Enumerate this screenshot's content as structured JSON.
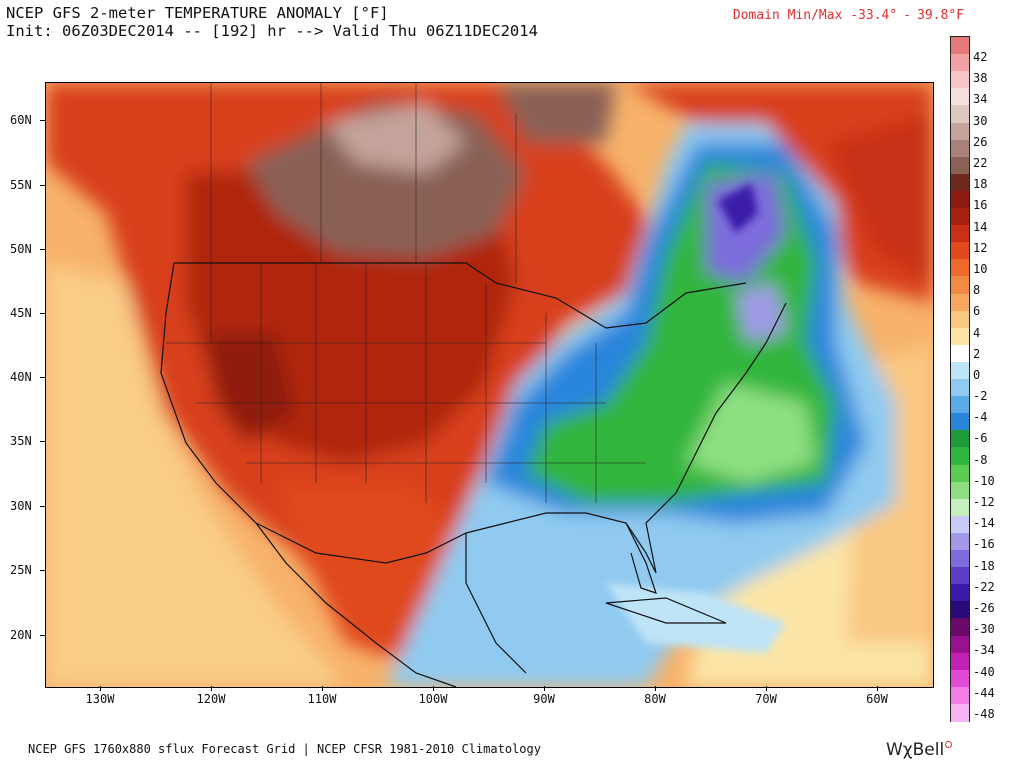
{
  "header": {
    "title_line1": "NCEP GFS 2-meter TEMPERATURE ANOMALY [°F]",
    "title_line2": "Init: 06Z03DEC2014 -- [192] hr --> Valid Thu 06Z11DEC2014"
  },
  "domain_minmax": {
    "label": "Domain Min/Max",
    "min": "-33.4°",
    "separator": "-",
    "max": "39.8°F",
    "color": "#e03030"
  },
  "axes": {
    "lat_labels": [
      "60N",
      "55N",
      "50N",
      "45N",
      "40N",
      "35N",
      "30N",
      "25N",
      "20N"
    ],
    "lon_labels": [
      "130W",
      "120W",
      "110W",
      "100W",
      "90W",
      "80W",
      "70W",
      "60W"
    ]
  },
  "colorbar": {
    "labels": [
      "42",
      "38",
      "34",
      "30",
      "26",
      "22",
      "18",
      "16",
      "14",
      "12",
      "10",
      "8",
      "6",
      "4",
      "2",
      "0",
      "-2",
      "-4",
      "-6",
      "-8",
      "-10",
      "-12",
      "-14",
      "-16",
      "-18",
      "-22",
      "-26",
      "-30",
      "-34",
      "-40",
      "-44",
      "-48"
    ],
    "colors": [
      "#e57a7a",
      "#f2a2a2",
      "#f8c8c8",
      "#f5dede",
      "#ddc8c0",
      "#c4a39a",
      "#a88276",
      "#8a6155",
      "#6f2a1e",
      "#8c1a10",
      "#a82010",
      "#c83018",
      "#e04a1c",
      "#ee6a2a",
      "#f38a44",
      "#f6a860",
      "#f9c882",
      "#fbe4a6",
      "#ffffff",
      "#bfe4f6",
      "#90caf0",
      "#5aaae8",
      "#2a86dc",
      "#1e9a3a",
      "#30b53e",
      "#5acc52",
      "#8edf82",
      "#c6efc0",
      "#c8ccf4",
      "#a29ae8",
      "#7d6cdc",
      "#5a3cc8",
      "#3a1aa8",
      "#2a0a78",
      "#6a0a6a",
      "#9a108e",
      "#c222b4",
      "#e04ad4",
      "#f27ee8",
      "#f8b4f2"
    ]
  },
  "footer": {
    "text": "NCEP GFS 1760x880 sflux Forecast Grid | NCEP CFSR 1981-2010 Climatology",
    "brand": "WχBell"
  },
  "map_colors": {
    "ocean_warm": "#f7b26a",
    "ocean_mild": "#f9cc88",
    "land_warm": "#d8401c",
    "land_hot": "#b02510",
    "land_hottest": "#8f1a10",
    "brown_anom": "#8a6155",
    "brown_light": "#c4a39a",
    "cold_blue": "#2a86dc",
    "light_blue": "#90caf0",
    "green": "#30b53e",
    "light_green": "#8edf82",
    "purple": "#7d6cdc"
  }
}
